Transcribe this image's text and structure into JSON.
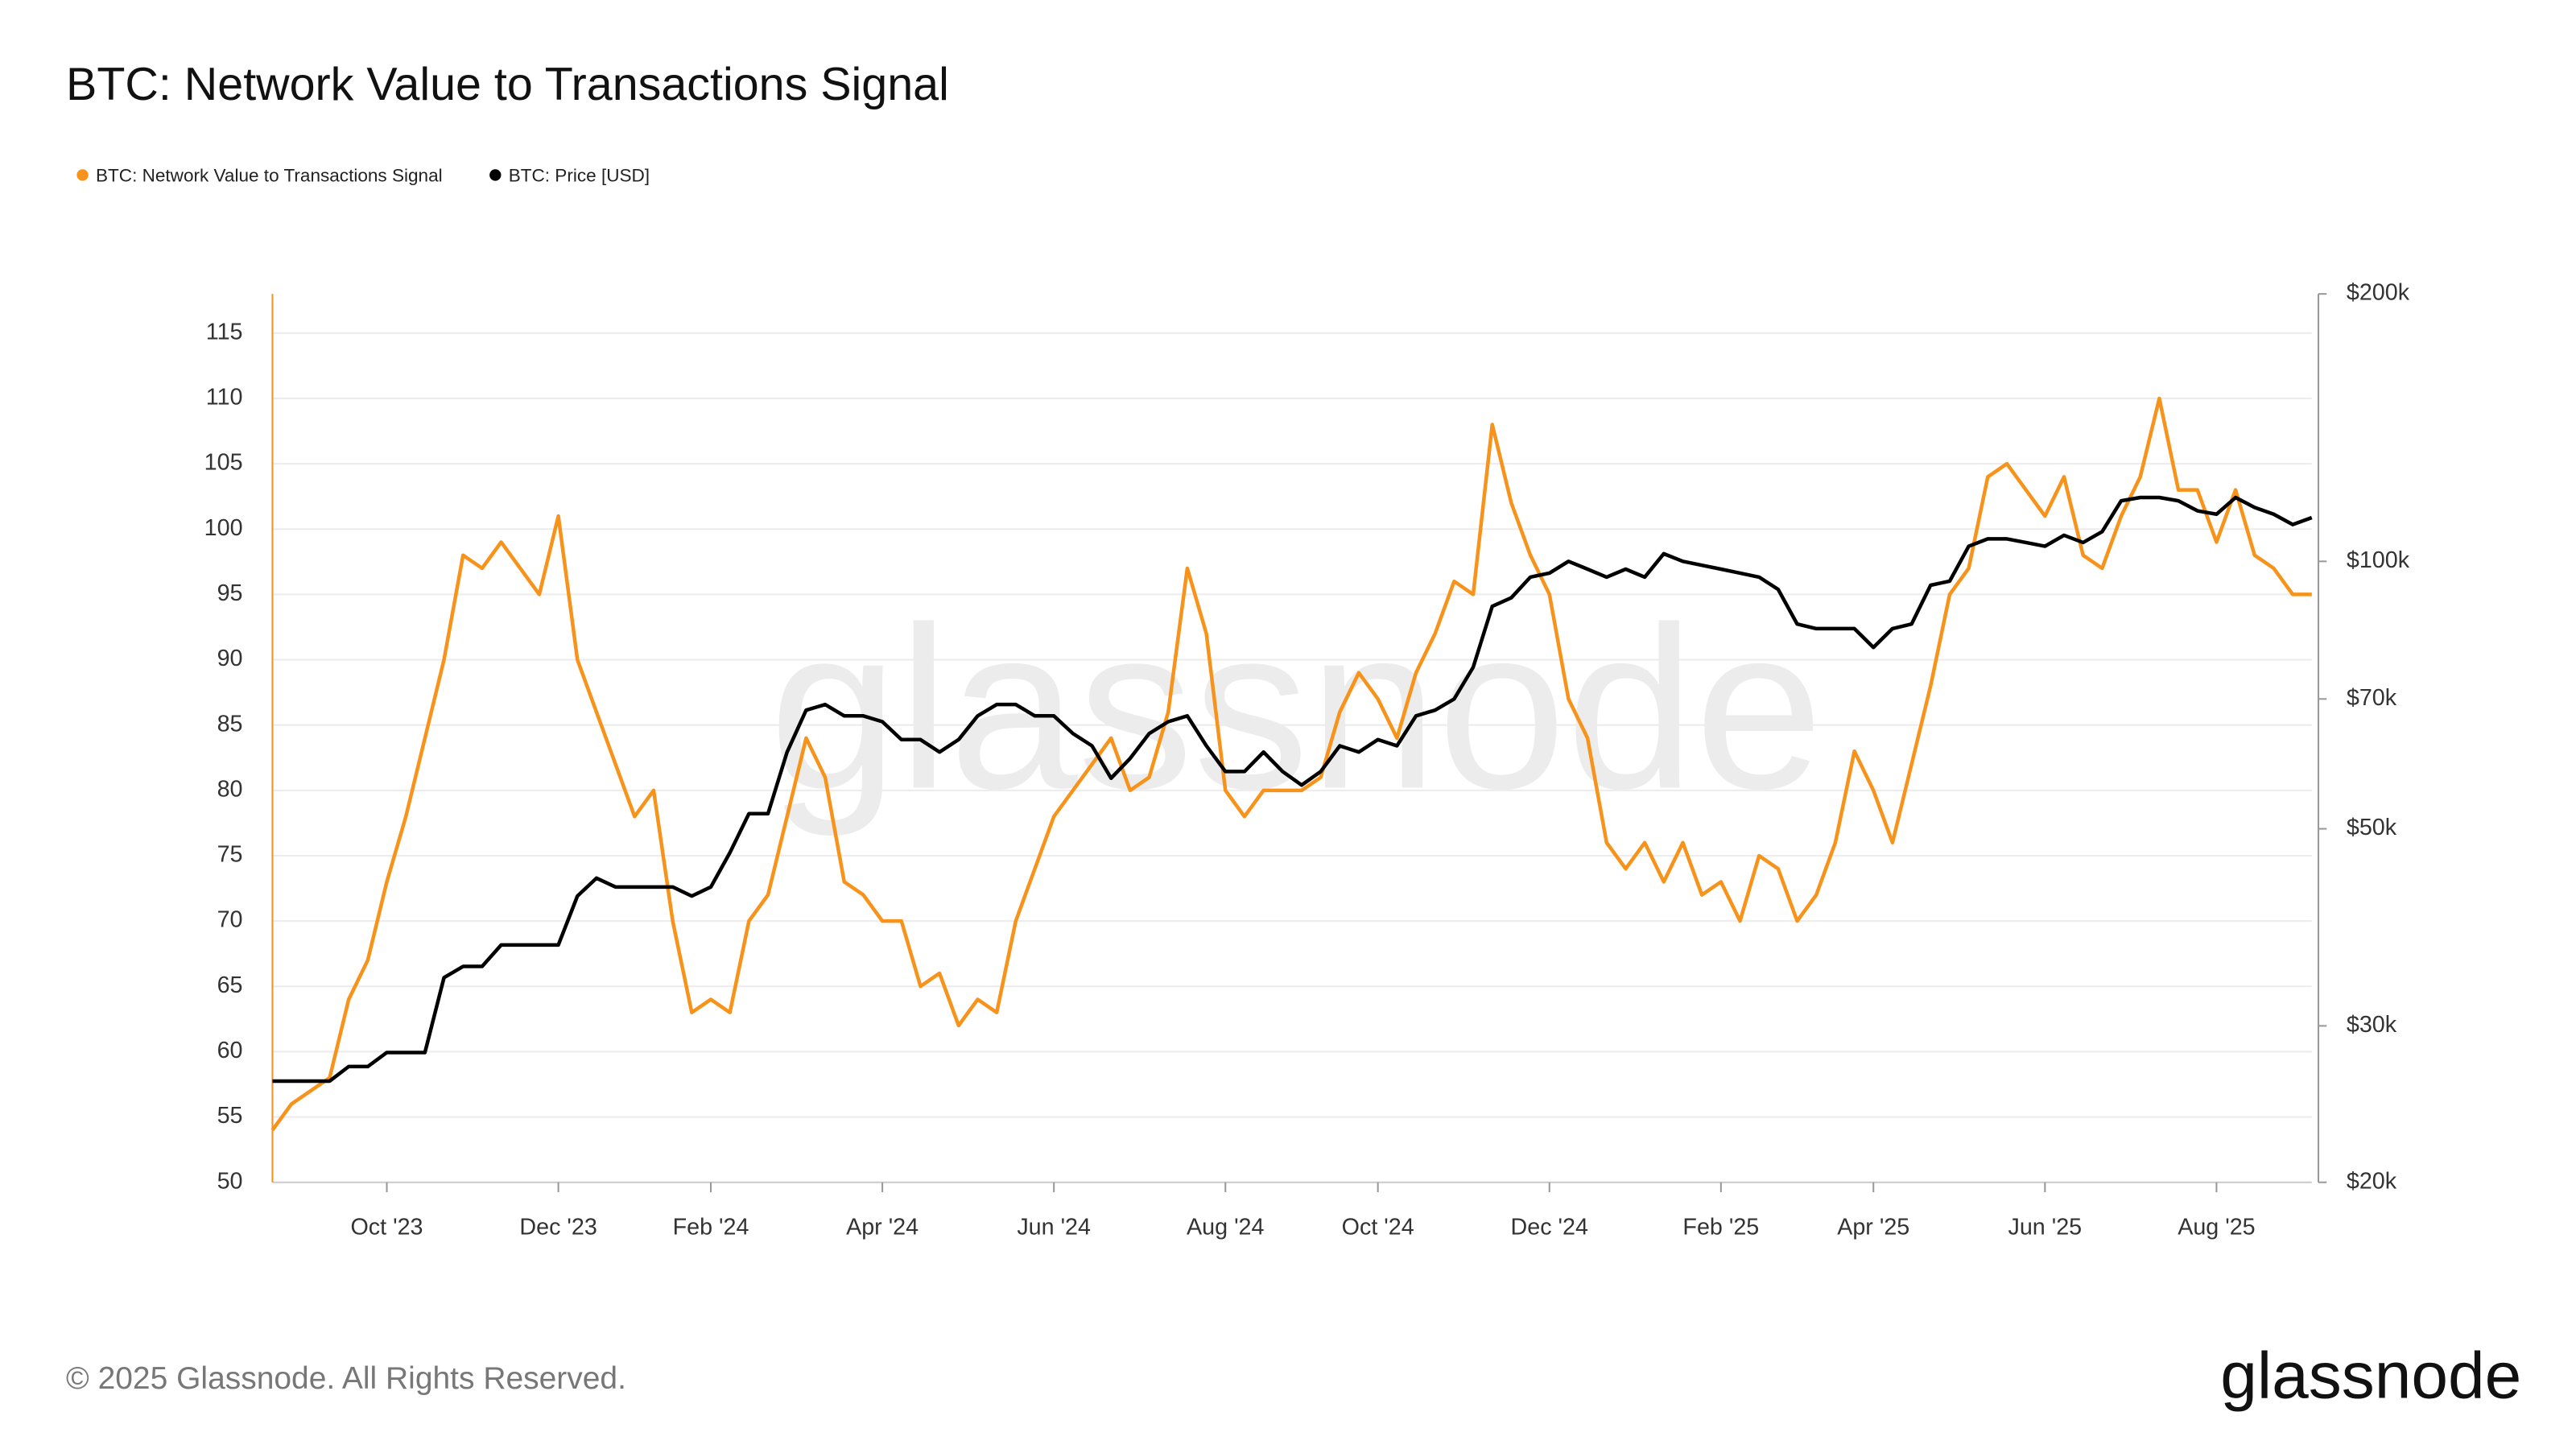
{
  "chart_data": {
    "type": "line",
    "title": "BTC: Network Value to Transactions Signal",
    "watermark": "glassnode",
    "footer": "© 2025 Glassnode. All Rights Reserved.",
    "logo": "glassnode",
    "legend": "top-left",
    "grid": true,
    "categories": [
      null,
      null,
      null,
      null,
      null,
      null,
      "Oct '23",
      null,
      null,
      null,
      null,
      null,
      null,
      null,
      null,
      "Dec '23",
      null,
      null,
      null,
      null,
      null,
      null,
      null,
      "Feb '24",
      null,
      null,
      null,
      null,
      null,
      null,
      null,
      null,
      "Apr '24",
      null,
      null,
      null,
      null,
      null,
      null,
      null,
      null,
      "Jun '24",
      null,
      null,
      null,
      null,
      null,
      null,
      null,
      null,
      "Aug '24",
      null,
      null,
      null,
      null,
      null,
      null,
      null,
      "Oct '24",
      null,
      null,
      null,
      null,
      null,
      null,
      null,
      null,
      "Dec '24",
      null,
      null,
      null,
      null,
      null,
      null,
      null,
      null,
      "Feb '25",
      null,
      null,
      null,
      null,
      null,
      null,
      null,
      "Apr '25",
      null,
      null,
      null,
      null,
      null,
      null,
      null,
      null,
      "Jun '25",
      null,
      null,
      null,
      null,
      null,
      null,
      null,
      null,
      "Aug '25",
      null,
      null,
      null,
      null,
      null
    ],
    "series": [
      {
        "name": "BTC: Network Value to Transactions Signal",
        "color": "#f7931a",
        "axis": "y",
        "values": [
          54,
          56,
          57,
          58,
          64,
          67,
          73,
          78,
          84,
          90,
          98,
          97,
          99,
          97,
          95,
          101,
          90,
          86,
          82,
          78,
          80,
          70,
          63,
          64,
          63,
          70,
          72,
          78,
          84,
          81,
          73,
          72,
          70,
          70,
          65,
          66,
          62,
          64,
          63,
          70,
          74,
          78,
          80,
          82,
          84,
          80,
          81,
          86,
          97,
          92,
          80,
          78,
          80,
          80,
          80,
          81,
          86,
          89,
          87,
          84,
          89,
          92,
          96,
          95,
          108,
          102,
          98,
          95,
          87,
          84,
          76,
          74,
          76,
          73,
          76,
          72,
          73,
          70,
          75,
          74,
          70,
          72,
          76,
          83,
          80,
          76,
          82,
          88,
          95,
          97,
          104,
          105,
          103,
          101,
          104,
          98,
          97,
          101,
          104,
          110,
          103,
          103,
          99,
          103,
          98,
          97,
          95,
          95
        ]
      },
      {
        "name": "BTC: Price [USD]",
        "color": "#000000",
        "axis": "y2",
        "values": [
          26000,
          26000,
          26000,
          26000,
          27000,
          27000,
          28000,
          28000,
          28000,
          34000,
          35000,
          35000,
          37000,
          37000,
          37000,
          37000,
          42000,
          44000,
          43000,
          43000,
          43000,
          43000,
          42000,
          43000,
          47000,
          52000,
          52000,
          61000,
          68000,
          69000,
          67000,
          67000,
          66000,
          63000,
          63000,
          61000,
          63000,
          67000,
          69000,
          69000,
          67000,
          67000,
          64000,
          62000,
          57000,
          60000,
          64000,
          66000,
          67000,
          62000,
          58000,
          58000,
          61000,
          58000,
          56000,
          58000,
          62000,
          61000,
          63000,
          62000,
          67000,
          68000,
          70000,
          76000,
          89000,
          91000,
          96000,
          97000,
          100000,
          98000,
          96000,
          98000,
          96000,
          102000,
          100000,
          99000,
          98000,
          97000,
          96000,
          93000,
          85000,
          84000,
          84000,
          84000,
          80000,
          84000,
          85000,
          94000,
          95000,
          104000,
          106000,
          106000,
          105000,
          104000,
          107000,
          105000,
          108000,
          117000,
          118000,
          118000,
          117000,
          114000,
          113000,
          118000,
          115000,
          113000,
          110000,
          112000
        ]
      }
    ],
    "ylim": [
      50,
      118
    ],
    "yticks": [
      50,
      55,
      60,
      65,
      70,
      75,
      80,
      85,
      90,
      95,
      100,
      105,
      110,
      115
    ],
    "y2lim": [
      20000,
      200000
    ],
    "y2scale": "log",
    "y2ticks": [
      {
        "value": 20000,
        "label": "$20k"
      },
      {
        "value": 30000,
        "label": "$30k"
      },
      {
        "value": 50000,
        "label": "$50k"
      },
      {
        "value": 70000,
        "label": "$70k"
      },
      {
        "value": 100000,
        "label": "$100k"
      },
      {
        "value": 200000,
        "label": "$200k"
      }
    ]
  }
}
